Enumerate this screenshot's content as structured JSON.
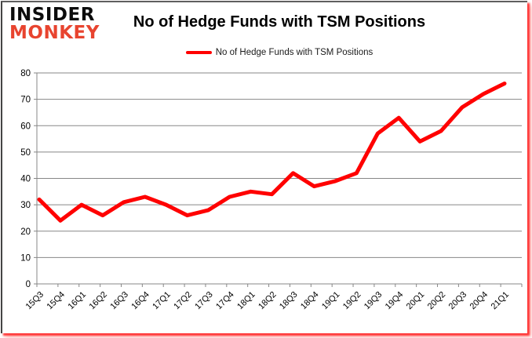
{
  "logo": {
    "line1": "INSIDER",
    "line2": "MONKEY",
    "accent_color": "#e8442f"
  },
  "header": {
    "title": "No of Hedge Funds with TSM Positions"
  },
  "legend": {
    "label": "No of Hedge Funds with TSM Positions",
    "swatch_color": "#ff0000"
  },
  "colors": {
    "line": "#ff0000",
    "gridline": "#878787",
    "axis_text": "#000000",
    "background": "#ffffff"
  },
  "chart_data": {
    "type": "line",
    "title": "No of Hedge Funds with TSM Positions",
    "xlabel": "",
    "ylabel": "",
    "ylim": [
      0,
      80
    ],
    "yticks": [
      0,
      10,
      20,
      30,
      40,
      50,
      60,
      70,
      80
    ],
    "grid": true,
    "legend_position": "top",
    "categories": [
      "15Q3",
      "15Q4",
      "16Q1",
      "16Q2",
      "16Q3",
      "16Q4",
      "17Q1",
      "17Q2",
      "17Q3",
      "17Q4",
      "18Q1",
      "18Q2",
      "18Q3",
      "18Q4",
      "19Q1",
      "19Q2",
      "19Q3",
      "19Q4",
      "20Q1",
      "20Q2",
      "20Q3",
      "20Q4",
      "21Q1"
    ],
    "series": [
      {
        "name": "No of Hedge Funds with TSM Positions",
        "color": "#ff0000",
        "values": [
          32,
          24,
          30,
          26,
          31,
          33,
          30,
          26,
          28,
          33,
          35,
          34,
          42,
          37,
          39,
          42,
          57,
          63,
          54,
          58,
          67,
          72,
          76
        ]
      }
    ]
  }
}
